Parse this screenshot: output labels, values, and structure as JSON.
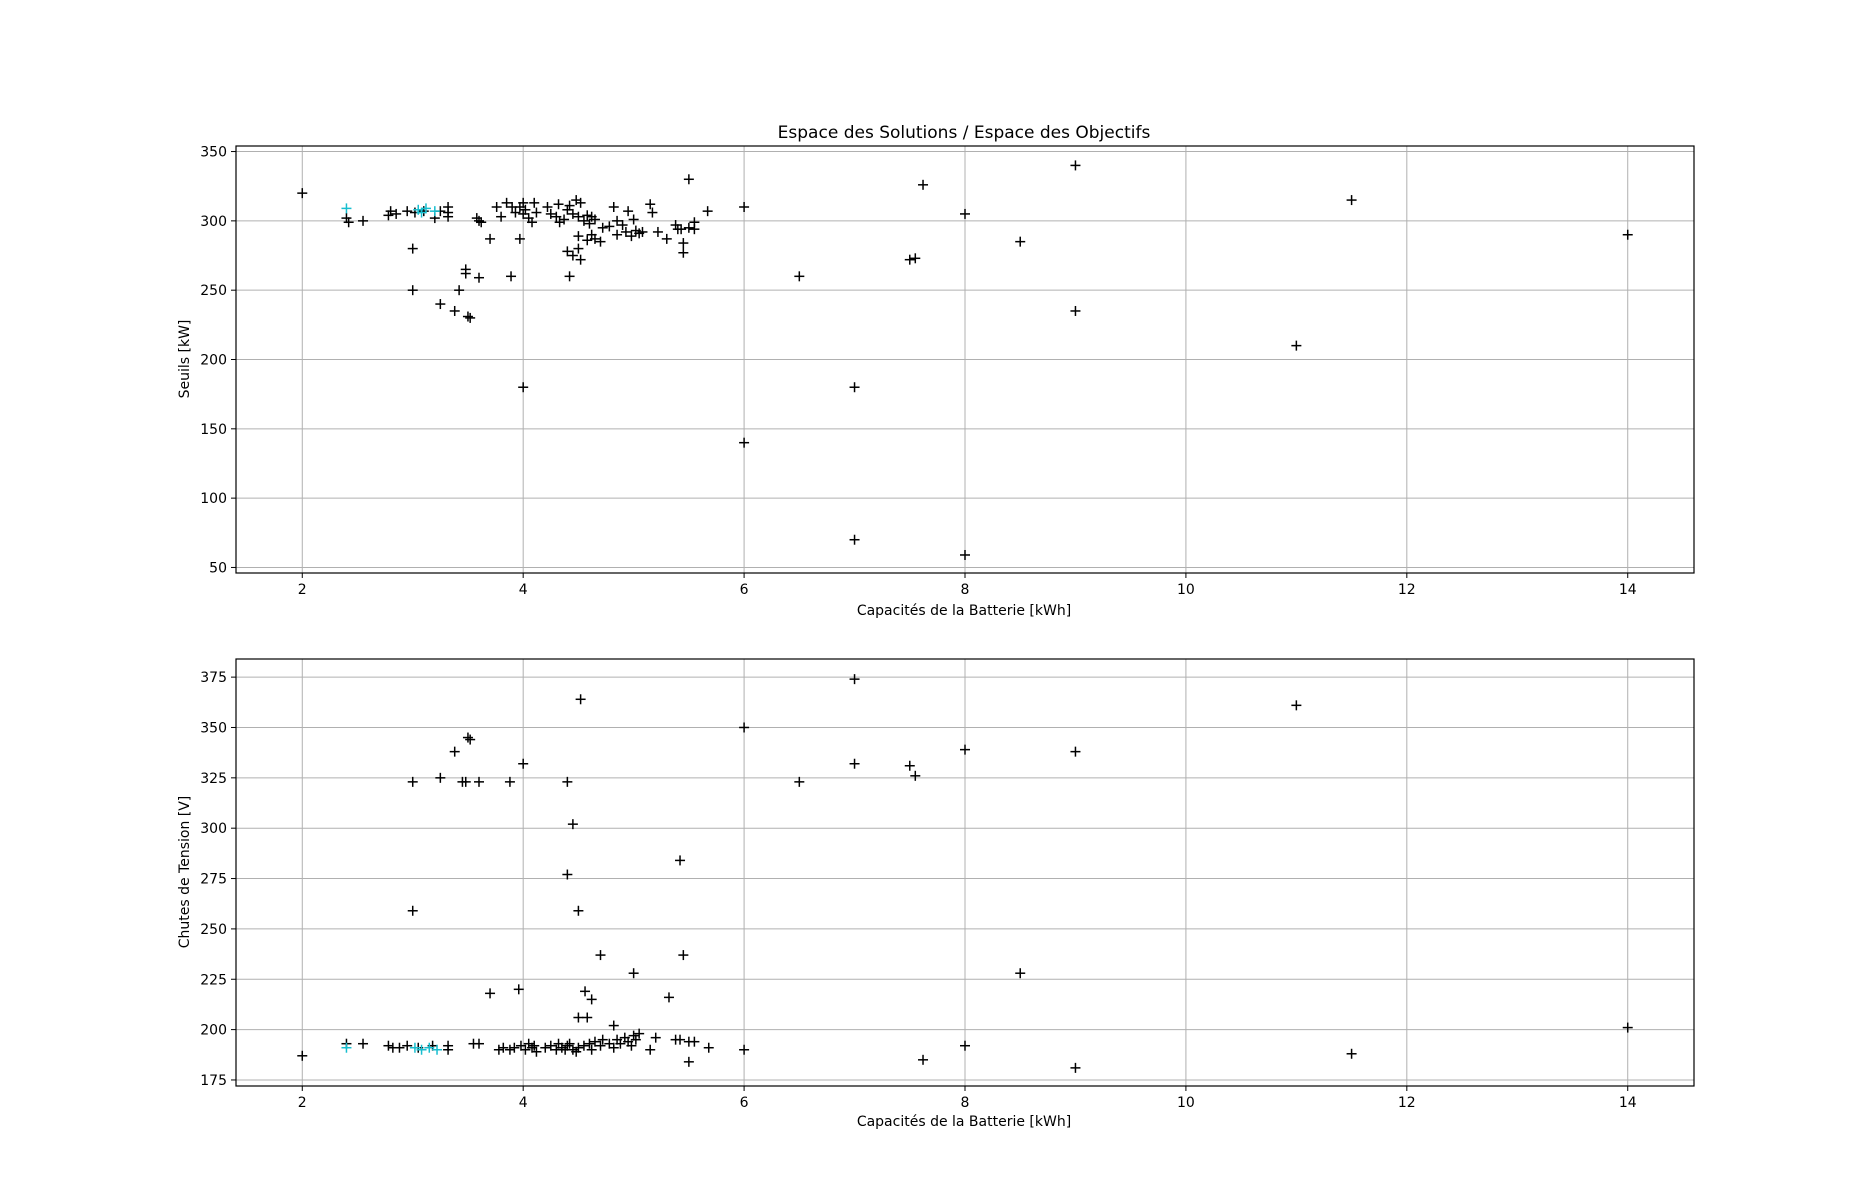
{
  "chart_data": [
    {
      "type": "scatter",
      "title": "Espace des Solutions / Espace des Objectifs",
      "xlabel": "Capacités de la Batterie [kWh]",
      "ylabel": "Seuils [kW]",
      "xlim": [
        1.4,
        14.6
      ],
      "ylim": [
        46,
        354
      ],
      "xticks": [
        2,
        4,
        6,
        8,
        10,
        12,
        14
      ],
      "yticks": [
        50,
        100,
        150,
        200,
        250,
        300,
        350
      ],
      "grid": true,
      "marker": "+",
      "series": [
        {
          "color": "#000000",
          "points": [
            [
              2,
              320
            ],
            [
              2.4,
              302
            ],
            [
              2.42,
              299
            ],
            [
              2.55,
              300
            ],
            [
              2.78,
              304
            ],
            [
              2.8,
              307
            ],
            [
              2.85,
              305
            ],
            [
              2.95,
              307
            ],
            [
              3.02,
              306
            ],
            [
              3.1,
              307
            ],
            [
              3.2,
              302
            ],
            [
              3.25,
              307
            ],
            [
              3.32,
              310
            ],
            [
              3.32,
              306
            ],
            [
              3.32,
              303
            ],
            [
              3.0,
              280
            ],
            [
              3.0,
              250
            ],
            [
              3.25,
              240
            ],
            [
              3.38,
              235
            ],
            [
              3.42,
              250
            ],
            [
              3.48,
              265
            ],
            [
              3.48,
              262
            ],
            [
              3.5,
              231
            ],
            [
              3.52,
              230
            ],
            [
              3.58,
              302
            ],
            [
              3.6,
              300
            ],
            [
              3.62,
              299
            ],
            [
              3.6,
              259
            ],
            [
              3.7,
              287
            ],
            [
              3.76,
              310
            ],
            [
              3.8,
              303
            ],
            [
              3.85,
              313
            ],
            [
              3.9,
              310
            ],
            [
              3.93,
              306
            ],
            [
              3.97,
              310
            ],
            [
              3.97,
              287
            ],
            [
              3.89,
              260
            ],
            [
              4.0,
              313
            ],
            [
              4.0,
              305
            ],
            [
              4.02,
              308
            ],
            [
              4.05,
              302
            ],
            [
              4.08,
              299
            ],
            [
              4.1,
              313
            ],
            [
              4.12,
              306
            ],
            [
              4.22,
              310
            ],
            [
              4.25,
              305
            ],
            [
              4.3,
              303
            ],
            [
              4.32,
              312
            ],
            [
              4.33,
              299
            ],
            [
              4.37,
              301
            ],
            [
              4.4,
              308
            ],
            [
              4.42,
              311
            ],
            [
              4.45,
              305
            ],
            [
              4.48,
              315
            ],
            [
              4.5,
              303
            ],
            [
              4.52,
              313
            ],
            [
              4.55,
              300
            ],
            [
              4.58,
              304
            ],
            [
              4.6,
              298
            ],
            [
              4.62,
              303
            ],
            [
              4.65,
              301
            ],
            [
              4.4,
              278
            ],
            [
              4.45,
              275
            ],
            [
              4.5,
              280
            ],
            [
              4.52,
              272
            ],
            [
              4.42,
              260
            ],
            [
              4.5,
              289
            ],
            [
              4.58,
              286
            ],
            [
              4.62,
              290
            ],
            [
              4.65,
              287
            ],
            [
              4.7,
              285
            ],
            [
              4.72,
              295
            ],
            [
              4.78,
              296
            ],
            [
              4.82,
              310
            ],
            [
              4.85,
              300
            ],
            [
              4.85,
              290
            ],
            [
              4.9,
              297
            ],
            [
              4.93,
              292
            ],
            [
              4.95,
              307
            ],
            [
              4.98,
              289
            ],
            [
              5.0,
              301
            ],
            [
              5.02,
              293
            ],
            [
              5.05,
              291
            ],
            [
              5.08,
              292
            ],
            [
              5.15,
              312
            ],
            [
              5.17,
              306
            ],
            [
              5.22,
              292
            ],
            [
              5.3,
              287
            ],
            [
              5.38,
              297
            ],
            [
              5.4,
              294
            ],
            [
              5.43,
              294
            ],
            [
              5.45,
              284
            ],
            [
              5.45,
              277
            ],
            [
              5.5,
              295
            ],
            [
              5.55,
              299
            ],
            [
              5.55,
              294
            ],
            [
              5.5,
              330
            ],
            [
              5.67,
              307
            ],
            [
              6.0,
              310
            ],
            [
              6.0,
              140
            ],
            [
              6.5,
              260
            ],
            [
              7.0,
              180
            ],
            [
              7.0,
              70
            ],
            [
              7.5,
              272
            ],
            [
              7.55,
              273
            ],
            [
              7.62,
              326
            ],
            [
              8.0,
              305
            ],
            [
              8.0,
              59
            ],
            [
              8.5,
              285
            ],
            [
              9.0,
              340
            ],
            [
              9.0,
              235
            ],
            [
              11.0,
              210
            ],
            [
              11.5,
              315
            ],
            [
              14.0,
              290
            ],
            [
              4.0,
              180
            ]
          ]
        },
        {
          "color": "#17becf",
          "points": [
            [
              2.4,
              309
            ],
            [
              3.05,
              308
            ],
            [
              3.08,
              306
            ],
            [
              3.12,
              309
            ],
            [
              3.2,
              307
            ]
          ]
        }
      ]
    },
    {
      "type": "scatter",
      "title": "",
      "xlabel": "Capacités de la Batterie [kWh]",
      "ylabel": "Chutes de Tension [V]",
      "xlim": [
        1.4,
        14.6
      ],
      "ylim": [
        172,
        384
      ],
      "xticks": [
        2,
        4,
        6,
        8,
        10,
        12,
        14
      ],
      "yticks": [
        175,
        200,
        225,
        250,
        275,
        300,
        325,
        350,
        375
      ],
      "grid": true,
      "marker": "+",
      "series": [
        {
          "color": "#000000",
          "points": [
            [
              2.0,
              187
            ],
            [
              2.4,
              193
            ],
            [
              2.55,
              193
            ],
            [
              2.78,
              192
            ],
            [
              2.82,
              191
            ],
            [
              2.88,
              191
            ],
            [
              2.95,
              192
            ],
            [
              3.05,
              191
            ],
            [
              3.18,
              192
            ],
            [
              3.32,
              190
            ],
            [
              3.32,
              192
            ],
            [
              3.55,
              193
            ],
            [
              3.6,
              193
            ],
            [
              3.78,
              190
            ],
            [
              3.82,
              191
            ],
            [
              3.88,
              190
            ],
            [
              3.92,
              191
            ],
            [
              3.98,
              192
            ],
            [
              4.02,
              190
            ],
            [
              4.05,
              193
            ],
            [
              4.08,
              191
            ],
            [
              4.1,
              192
            ],
            [
              4.12,
              189
            ],
            [
              4.2,
              191
            ],
            [
              4.25,
              192
            ],
            [
              4.3,
              190
            ],
            [
              4.32,
              193
            ],
            [
              4.35,
              191
            ],
            [
              4.38,
              190
            ],
            [
              4.4,
              192
            ],
            [
              4.42,
              193
            ],
            [
              4.45,
              190
            ],
            [
              4.48,
              189
            ],
            [
              4.5,
              191
            ],
            [
              4.55,
              192
            ],
            [
              4.6,
              193
            ],
            [
              4.62,
              190
            ],
            [
              4.65,
              194
            ],
            [
              4.7,
              192
            ],
            [
              4.72,
              195
            ],
            [
              4.78,
              193
            ],
            [
              4.82,
              191
            ],
            [
              4.85,
              195
            ],
            [
              4.88,
              193
            ],
            [
              4.92,
              196
            ],
            [
              4.95,
              194
            ],
            [
              4.98,
              192
            ],
            [
              5.0,
              197
            ],
            [
              5.02,
              195
            ],
            [
              5.05,
              198
            ],
            [
              5.15,
              190
            ],
            [
              5.2,
              196
            ],
            [
              5.38,
              195
            ],
            [
              5.42,
              195
            ],
            [
              5.5,
              194
            ],
            [
              5.55,
              194
            ],
            [
              5.68,
              191
            ],
            [
              6.0,
              190
            ],
            [
              3.0,
              323
            ],
            [
              3.25,
              325
            ],
            [
              3.38,
              338
            ],
            [
              3.45,
              323
            ],
            [
              3.48,
              323
            ],
            [
              3.5,
              345
            ],
            [
              3.52,
              344
            ],
            [
              3.6,
              323
            ],
            [
              3.88,
              323
            ],
            [
              4.0,
              332
            ],
            [
              4.4,
              323
            ],
            [
              4.45,
              302
            ],
            [
              4.4,
              277
            ],
            [
              3.0,
              259
            ],
            [
              4.5,
              259
            ],
            [
              4.52,
              364
            ],
            [
              3.7,
              218
            ],
            [
              3.96,
              220
            ],
            [
              4.5,
              206
            ],
            [
              4.58,
              206
            ],
            [
              4.56,
              219
            ],
            [
              4.62,
              215
            ],
            [
              4.7,
              237
            ],
            [
              4.82,
              202
            ],
            [
              5.0,
              228
            ],
            [
              5.32,
              216
            ],
            [
              5.42,
              284
            ],
            [
              5.45,
              237
            ],
            [
              5.5,
              184
            ],
            [
              6.0,
              350
            ],
            [
              6.5,
              323
            ],
            [
              7.0,
              374
            ],
            [
              7.0,
              332
            ],
            [
              7.5,
              331
            ],
            [
              7.55,
              326
            ],
            [
              7.62,
              185
            ],
            [
              8.0,
              339
            ],
            [
              8.0,
              192
            ],
            [
              8.5,
              228
            ],
            [
              9.0,
              338
            ],
            [
              9.0,
              181
            ],
            [
              11.0,
              361
            ],
            [
              11.5,
              188
            ],
            [
              14.0,
              201
            ]
          ]
        },
        {
          "color": "#17becf",
          "points": [
            [
              2.4,
              191
            ],
            [
              3.02,
              191
            ],
            [
              3.08,
              190
            ],
            [
              3.15,
              191
            ],
            [
              3.22,
              190
            ]
          ]
        }
      ]
    }
  ]
}
